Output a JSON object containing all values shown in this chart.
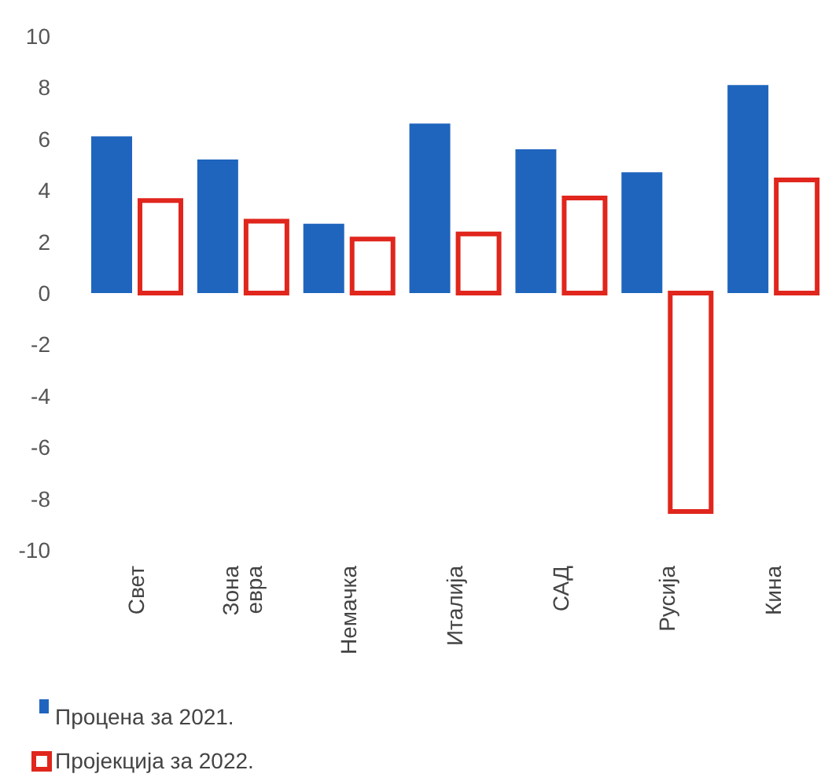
{
  "chart_data": {
    "type": "bar",
    "categories": [
      "Свет",
      "Зона евра",
      "Немачка",
      "Италија",
      "САД",
      "Русија",
      "Кина"
    ],
    "series": [
      {
        "name": "Процена за 2021.",
        "color": "#1f65bd",
        "values": [
          6.1,
          5.2,
          2.7,
          6.6,
          5.6,
          4.7,
          8.1
        ]
      },
      {
        "name": "Пројекција за 2022.",
        "color": "#e0261d",
        "values": [
          3.6,
          2.8,
          2.1,
          2.3,
          3.7,
          -8.5,
          4.4
        ]
      }
    ],
    "ylim": [
      -10,
      10
    ],
    "yticks": [
      -10,
      -8,
      -6,
      -4,
      -2,
      0,
      2,
      4,
      6,
      8,
      10
    ],
    "legend": "bottom left"
  }
}
